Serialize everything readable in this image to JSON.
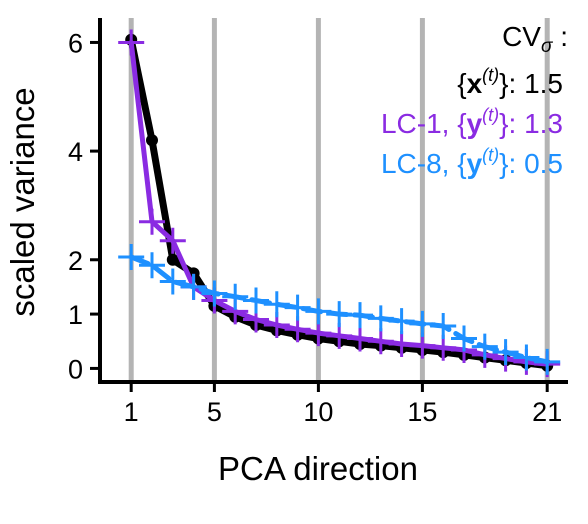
{
  "chart_data": {
    "type": "line",
    "xlabel": "PCA direction",
    "ylabel": "scaled variance",
    "xlim": [
      -0.5,
      22
    ],
    "ylim": [
      -0.25,
      6.45
    ],
    "grid": "vertical lines at x = 1, 5, 10, 15, 21",
    "xticks": [
      1,
      5,
      10,
      15,
      21
    ],
    "xtick_labels": [
      "1",
      "5",
      "10",
      "15",
      "21"
    ],
    "yticks": [
      0,
      1,
      2,
      4,
      6
    ],
    "ytick_labels": [
      "0",
      "1",
      "2",
      "4",
      "6"
    ],
    "annotation": {
      "header": "CV",
      "header_sub": "σ",
      "header_tail": " :",
      "lines": [
        {
          "pre": "{",
          "bold": "x",
          "sup": "(t)",
          "post": "}: 1.5",
          "color": "#000000"
        },
        {
          "pre": "LC-1, {",
          "bold": "y",
          "sup": "(t)",
          "post": "}: 1.3",
          "color": "#8a2be2"
        },
        {
          "pre": "LC-8, {",
          "bold": "y",
          "sup": "(t)",
          "post": "}: 0.5",
          "color": "#1e90ff"
        }
      ]
    },
    "series": [
      {
        "color": "#000000",
        "marker": "circle",
        "x": [
          1,
          2,
          3,
          4,
          5,
          6,
          7,
          8,
          9,
          10,
          11,
          12,
          13,
          14,
          15,
          16,
          17,
          18,
          19,
          20,
          21
        ],
        "y": [
          6.05,
          4.2,
          2.0,
          1.75,
          1.15,
          0.95,
          0.8,
          0.7,
          0.62,
          0.55,
          0.5,
          0.45,
          0.42,
          0.38,
          0.34,
          0.3,
          0.25,
          0.2,
          0.15,
          0.1,
          0.05
        ]
      },
      {
        "color": "#8a2be2",
        "marker": "plus",
        "x": [
          1,
          2,
          3,
          4,
          5,
          6,
          7,
          8,
          9,
          10,
          11,
          12,
          13,
          14,
          15,
          16,
          17,
          18,
          19,
          20,
          21
        ],
        "y": [
          6.0,
          2.7,
          2.35,
          1.5,
          1.25,
          1.05,
          0.9,
          0.8,
          0.72,
          0.65,
          0.6,
          0.55,
          0.5,
          0.45,
          0.42,
          0.38,
          0.34,
          0.25,
          0.18,
          0.12,
          0.08
        ]
      },
      {
        "color": "#1e90ff",
        "marker": "plus",
        "dashed": true,
        "x": [
          1,
          2,
          3,
          4,
          5,
          6,
          7,
          8,
          9,
          10,
          11,
          12,
          13,
          14,
          15,
          16,
          17,
          18,
          19,
          20,
          21
        ],
        "y": [
          2.05,
          1.9,
          1.6,
          1.5,
          1.38,
          1.32,
          1.25,
          1.18,
          1.12,
          1.05,
          1.0,
          0.98,
          0.92,
          0.87,
          0.82,
          0.78,
          0.55,
          0.4,
          0.3,
          0.2,
          0.12
        ]
      }
    ]
  }
}
